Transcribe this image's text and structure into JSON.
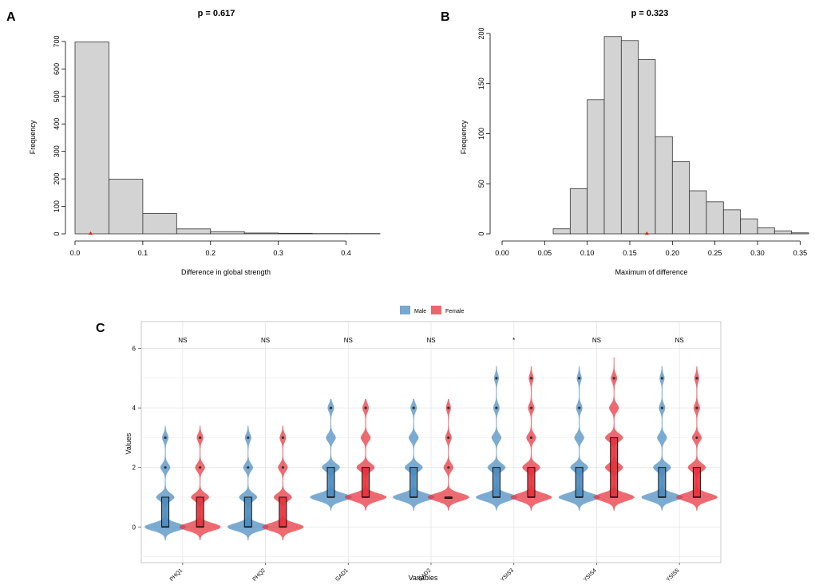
{
  "chart_data": [
    {
      "panel": "A",
      "type": "bar",
      "subtype": "histogram",
      "title": "p = 0.617",
      "xlabel": "Difference in global strength",
      "ylabel": "Frequency",
      "bin_edges": [
        0.0,
        0.05,
        0.1,
        0.15,
        0.2,
        0.25,
        0.3,
        0.35,
        0.4,
        0.45
      ],
      "values": [
        698,
        199,
        74,
        18,
        8,
        3,
        2,
        1,
        1
      ],
      "xlim": [
        0,
        0.45
      ],
      "ylim": [
        0,
        700
      ],
      "xticks": [
        0.0,
        0.1,
        0.2,
        0.3,
        0.4
      ],
      "xtick_labels": [
        "0.0",
        "0.1",
        "0.2",
        "0.3",
        "0.4"
      ],
      "yticks": [
        0,
        100,
        200,
        300,
        400,
        500,
        600,
        700
      ],
      "ytick_labels": [
        "0",
        "100",
        "200",
        "300",
        "400",
        "500",
        "600",
        "700"
      ],
      "observed_marker": 0.023,
      "bar_color": "#d3d3d3",
      "marker_color": "#e41a1c"
    },
    {
      "panel": "B",
      "type": "bar",
      "subtype": "histogram",
      "title": "p = 0.323",
      "xlabel": "Maximum of difference",
      "ylabel": "Frequency",
      "bin_edges": [
        0.06,
        0.08,
        0.1,
        0.12,
        0.14,
        0.16,
        0.18,
        0.2,
        0.22,
        0.24,
        0.26,
        0.28,
        0.3,
        0.32,
        0.34,
        0.36
      ],
      "values": [
        5,
        45,
        134,
        197,
        193,
        174,
        97,
        72,
        43,
        32,
        24,
        15,
        6,
        3,
        1
      ],
      "xlim": [
        0,
        0.36
      ],
      "ylim": [
        0,
        200
      ],
      "xticks": [
        0.0,
        0.05,
        0.1,
        0.15,
        0.2,
        0.25,
        0.3,
        0.35
      ],
      "xtick_labels": [
        "0.00",
        "0.05",
        "0.10",
        "0.15",
        "0.20",
        "0.25",
        "0.30",
        "0.35"
      ],
      "yticks": [
        0,
        50,
        100,
        150,
        200
      ],
      "ytick_labels": [
        "0",
        "50",
        "100",
        "150",
        "200"
      ],
      "observed_marker": 0.17,
      "bar_color": "#d3d3d3",
      "marker_color": "#e41a1c"
    },
    {
      "panel": "C",
      "type": "violin",
      "xlabel": "Variables",
      "ylabel": "Values",
      "ylim": [
        -1.2,
        6.9
      ],
      "yticks": [
        0,
        2,
        4,
        6
      ],
      "ytick_labels": [
        "0",
        "2",
        "4",
        "6"
      ],
      "categories": [
        "PHQ1",
        "PHQ2",
        "GAD1",
        "GAD2",
        "YSIS3",
        "YSIS4",
        "YSIS5"
      ],
      "legend": [
        {
          "name": "Male",
          "color": "#4a8bbf"
        },
        {
          "name": "Female",
          "color": "#e8303a"
        }
      ],
      "significance": [
        "NS",
        "NS",
        "NS",
        "NS",
        "*",
        "NS",
        "NS"
      ],
      "series": [
        {
          "name": "Male",
          "color": "#4a8bbf",
          "box": [
            {
              "q1": 0,
              "median": 0,
              "q3": 1,
              "outliers": [
                2,
                3
              ]
            },
            {
              "q1": 0,
              "median": 0,
              "q3": 1,
              "outliers": [
                2,
                3
              ]
            },
            {
              "q1": 1,
              "median": 1,
              "q3": 2,
              "outliers": [
                4
              ]
            },
            {
              "q1": 1,
              "median": 1,
              "q3": 2,
              "outliers": [
                4
              ]
            },
            {
              "q1": 1,
              "median": 1,
              "q3": 2,
              "outliers": [
                4,
                5
              ]
            },
            {
              "q1": 1,
              "median": 1,
              "q3": 2,
              "outliers": [
                4,
                5
              ]
            },
            {
              "q1": 1,
              "median": 1,
              "q3": 2,
              "outliers": [
                4,
                5
              ]
            }
          ],
          "violin_max": [
            3.4,
            3.4,
            4.3,
            4.3,
            5.4,
            5.4,
            5.4
          ]
        },
        {
          "name": "Female",
          "color": "#e8303a",
          "box": [
            {
              "q1": 0,
              "median": 0,
              "q3": 1,
              "outliers": [
                2,
                3
              ]
            },
            {
              "q1": 0,
              "median": 0,
              "q3": 1,
              "outliers": [
                2,
                3
              ]
            },
            {
              "q1": 1,
              "median": 1,
              "q3": 2,
              "outliers": [
                4
              ]
            },
            {
              "q1": 1,
              "median": 1,
              "q3": 1,
              "outliers": [
                2,
                3,
                4
              ]
            },
            {
              "q1": 1,
              "median": 1,
              "q3": 2,
              "outliers": [
                3,
                4,
                5
              ]
            },
            {
              "q1": 1,
              "median": 1,
              "q3": 3,
              "outliers": [
                5
              ]
            },
            {
              "q1": 1,
              "median": 1,
              "q3": 2,
              "outliers": [
                3,
                4,
                5
              ]
            }
          ],
          "violin_max": [
            3.4,
            3.4,
            4.3,
            4.3,
            5.4,
            5.7,
            5.4
          ]
        }
      ]
    }
  ]
}
